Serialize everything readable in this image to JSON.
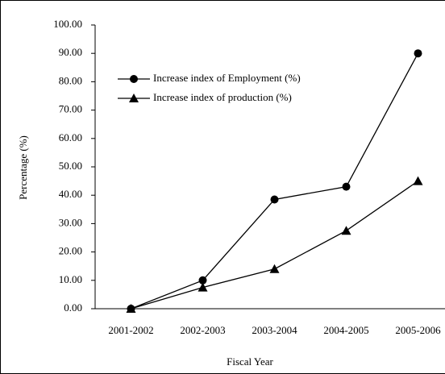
{
  "chart_data": {
    "type": "line",
    "xlabel": "Fiscal Year",
    "ylabel": "Percentage (%)",
    "categories": [
      "2001-2002",
      "2002-2003",
      "2003-2004",
      "2004-2005",
      "2005-2006"
    ],
    "series": [
      {
        "name": "Increase index of Employment (%)",
        "color": "#000000",
        "marker": "circle",
        "values": [
          0,
          10,
          38.5,
          43,
          90
        ]
      },
      {
        "name": "Increase index of production (%)",
        "color": "#000000",
        "marker": "triangle",
        "values": [
          0,
          7.5,
          14,
          27.5,
          45
        ]
      }
    ],
    "ylim": [
      0,
      100
    ],
    "yticks": [
      {
        "value": 0,
        "label": "0.00"
      },
      {
        "value": 10,
        "label": "10.00"
      },
      {
        "value": 20,
        "label": "20.00"
      },
      {
        "value": 30,
        "label": "30.00"
      },
      {
        "value": 40,
        "label": "40.00"
      },
      {
        "value": 50,
        "label": "50.00"
      },
      {
        "value": 60,
        "label": "60.00"
      },
      {
        "value": 70,
        "label": "70.00"
      },
      {
        "value": 80,
        "label": "80.00"
      },
      {
        "value": 90,
        "label": "90.00"
      },
      {
        "value": 100,
        "label": "100.00"
      }
    ],
    "grid": false,
    "legend": "upper left"
  }
}
